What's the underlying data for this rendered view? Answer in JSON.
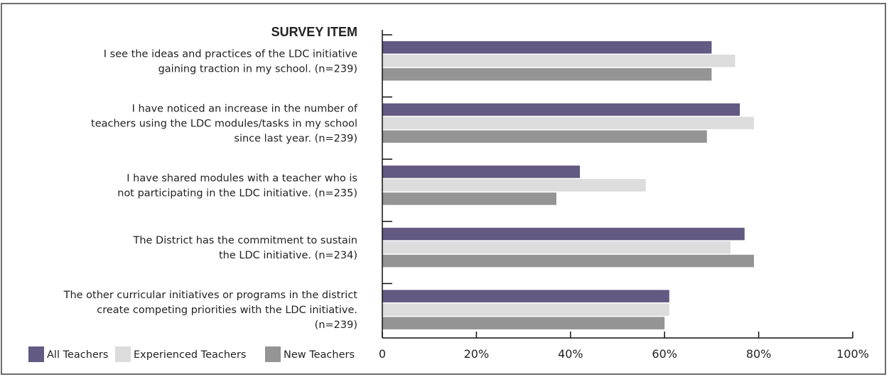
{
  "chart_data": {
    "type": "bar",
    "orientation": "horizontal",
    "category_axis_title": "SURVEY ITEM",
    "categories": [
      [
        "I see the ideas and practices of the LDC initiative",
        "gaining traction in my school.  (n=239)"
      ],
      [
        "I have noticed an increase in the number of",
        "teachers using the LDC modules/tasks in my school",
        "since last year.  (n=239)"
      ],
      [
        "I have shared modules with a teacher who is",
        "not participating in the LDC initiative.  (n=235)"
      ],
      [
        "The District has the commitment to sustain",
        "the LDC initiative.  (n=234)"
      ],
      [
        "The other curricular initiatives or programs in the district",
        "create competing priorities with the LDC initiative.",
        "(n=239)"
      ]
    ],
    "series": [
      {
        "name": "All Teachers",
        "color": "#625a82",
        "values": [
          70,
          76,
          42,
          77,
          61
        ]
      },
      {
        "name": "Experienced Teachers",
        "color": "#dcdcdc",
        "values": [
          75,
          79,
          56,
          74,
          61
        ]
      },
      {
        "name": "New Teachers",
        "color": "#949494",
        "values": [
          70,
          69,
          37,
          79,
          60
        ]
      }
    ],
    "xlim": [
      0,
      100
    ],
    "x_ticks": [
      "0",
      "20%",
      "40%",
      "60%",
      "80%",
      "100%"
    ],
    "grid": false,
    "legend_position": "bottom-left"
  }
}
